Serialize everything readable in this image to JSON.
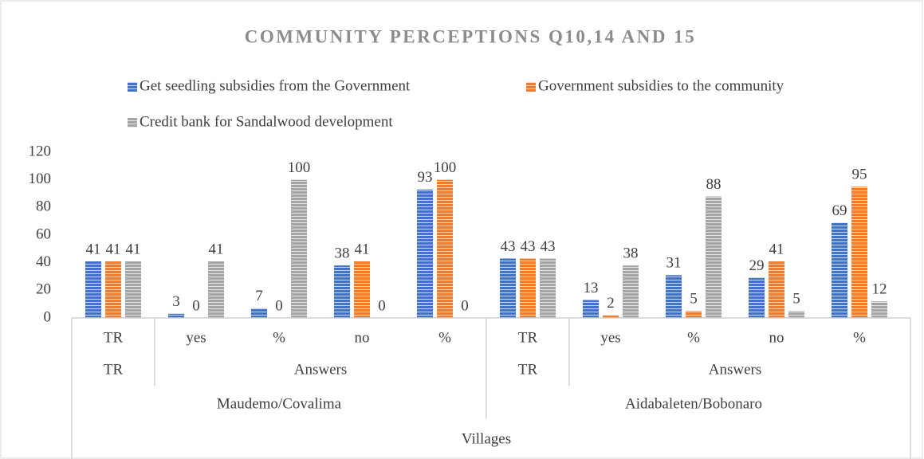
{
  "chart_data": {
    "type": "bar",
    "title": "COMMUNITY PERCEPTIONS Q10,14 AND 15",
    "categories": [
      "TR",
      "yes",
      "%",
      "no",
      "%",
      "TR",
      "yes",
      "%",
      "no",
      "%"
    ],
    "category_groups": [
      {
        "labels": [
          "TR",
          "Answers",
          "TR",
          "Answers"
        ],
        "spans": [
          1,
          4,
          1,
          4
        ]
      },
      {
        "labels": [
          "Maudemo/Covalima",
          "Aidabaleten/Bobonaro"
        ],
        "spans": [
          5,
          5
        ]
      },
      {
        "labels": [
          "Villages"
        ],
        "spans": [
          10
        ]
      }
    ],
    "series": [
      {
        "name": "Get seedling subsidies from the Government",
        "color": "#4472c4",
        "values": [
          41,
          3,
          7,
          38,
          93,
          43,
          13,
          31,
          29,
          69
        ]
      },
      {
        "name": "Government subsidies to the community",
        "color": "#ed7d31",
        "values": [
          41,
          0,
          0,
          41,
          100,
          43,
          2,
          5,
          41,
          95
        ]
      },
      {
        "name": "Credit bank for Sandalwood development",
        "color": "#a5a5a5",
        "values": [
          41,
          41,
          100,
          0,
          0,
          43,
          38,
          88,
          5,
          12
        ]
      }
    ],
    "ylim": [
      0,
      120
    ],
    "yticks": [
      0,
      20,
      40,
      60,
      80,
      100,
      120
    ],
    "grid": false,
    "legend": "top"
  }
}
